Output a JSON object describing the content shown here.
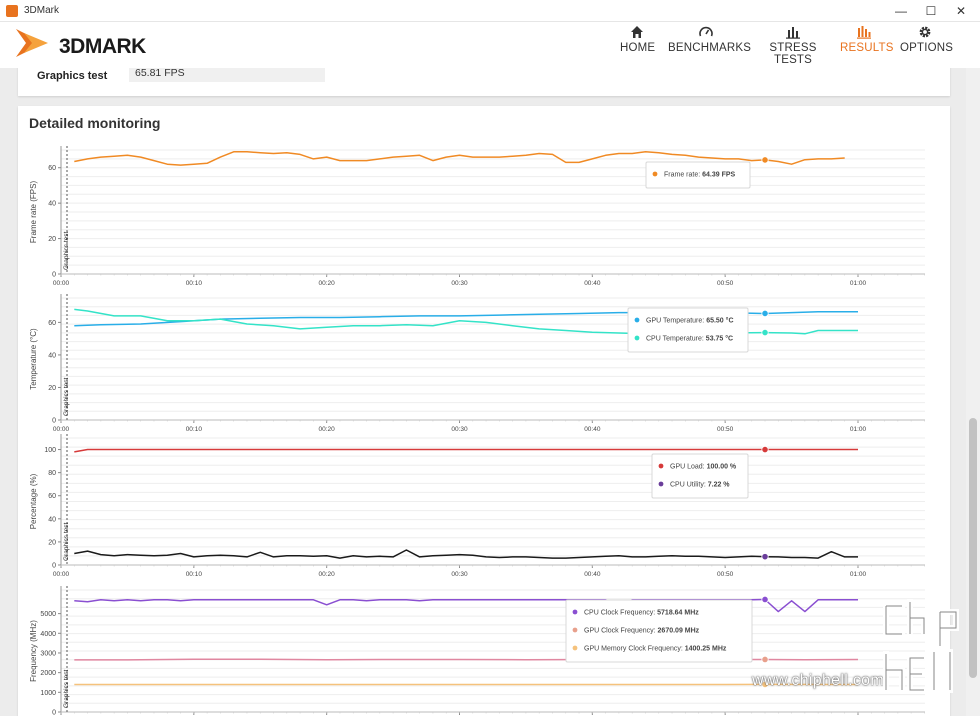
{
  "window": {
    "title": "3DMark",
    "minimize": "—",
    "maximize": "☐",
    "close": "✕"
  },
  "brand": {
    "logo_text": "3DMARK",
    "accent_color": "#e8731f"
  },
  "nav": [
    {
      "label": "HOME",
      "icon": "home-icon",
      "active": false
    },
    {
      "label": "BENCHMARKS",
      "icon": "gauge-icon",
      "active": false
    },
    {
      "label": "STRESS TESTS",
      "icon": "bars-icon",
      "active": false
    },
    {
      "label": "RESULTS",
      "icon": "results-icon",
      "active": true
    },
    {
      "label": "OPTIONS",
      "icon": "gear-icon",
      "active": false
    }
  ],
  "summary": {
    "label": "Graphics test",
    "value": "65.81 FPS"
  },
  "monitoring": {
    "title": "Detailed monitoring",
    "marker_label": "Graphics test",
    "x_ticks": [
      "00:00",
      "00:10",
      "00:20",
      "00:30",
      "00:40",
      "00:50",
      "01:00"
    ]
  },
  "chart_data": [
    {
      "type": "line",
      "ylabel": "Frame rate (FPS)",
      "ylim": [
        0,
        70
      ],
      "yticks": [
        0,
        20,
        40,
        60
      ],
      "x_range": [
        0,
        65
      ],
      "series": [
        {
          "name": "Frame rate",
          "color": "#f08a24",
          "x": [
            1,
            2,
            3,
            4,
            5,
            6,
            7,
            8,
            9,
            10,
            11,
            12,
            13,
            14,
            15,
            16,
            17,
            18,
            19,
            20,
            21,
            22,
            23,
            24,
            25,
            26,
            27,
            28,
            29,
            30,
            31,
            32,
            33,
            34,
            35,
            36,
            37,
            38,
            39,
            40,
            41,
            42,
            43,
            44,
            45,
            46,
            47,
            48,
            49,
            50,
            51,
            52,
            53,
            54,
            55,
            56,
            57,
            58,
            59
          ],
          "y": [
            63.5,
            65,
            66,
            66.5,
            67,
            66,
            64,
            62,
            61.5,
            62,
            62.5,
            66,
            69,
            69,
            68.5,
            68,
            68.5,
            67.5,
            65,
            66,
            64,
            64,
            64,
            65,
            66,
            66.5,
            67,
            64,
            66,
            67,
            66,
            66,
            66,
            66.5,
            67,
            68,
            67.5,
            63,
            63,
            65,
            67,
            68,
            68,
            69,
            68.5,
            67.5,
            67,
            66,
            65.5,
            65,
            65,
            64,
            64.39,
            63.5,
            62,
            64.5,
            65,
            65,
            65.5
          ]
        }
      ],
      "tooltip": [
        {
          "label": "Frame rate:",
          "value": "64.39 FPS",
          "color": "#f08a24"
        }
      ],
      "highlight_x": 53
    },
    {
      "type": "line",
      "ylabel": "Temperature (°C)",
      "ylim": [
        0,
        75
      ],
      "yticks": [
        0,
        20,
        40,
        60
      ],
      "x_range": [
        0,
        65
      ],
      "series": [
        {
          "name": "GPU Temperature",
          "color": "#29aee8",
          "x": [
            1,
            3,
            6,
            9,
            12,
            15,
            18,
            21,
            24,
            27,
            30,
            33,
            36,
            39,
            42,
            45,
            48,
            50,
            53,
            55,
            57,
            60
          ],
          "y": [
            58,
            58.5,
            59,
            60.5,
            62,
            62.5,
            63,
            63,
            63.5,
            64,
            64,
            64.5,
            65,
            65.5,
            66,
            66,
            66.5,
            66,
            65.5,
            66,
            66.5,
            66.5
          ]
        },
        {
          "name": "CPU Temperature",
          "color": "#34e3c8",
          "x": [
            1,
            2,
            4,
            6,
            8,
            10,
            12,
            14,
            16,
            18,
            20,
            22,
            24,
            26,
            28,
            30,
            32,
            34,
            36,
            38,
            40,
            42,
            44,
            46,
            48,
            50,
            53,
            55,
            56,
            57,
            60
          ],
          "y": [
            68,
            67,
            64,
            64,
            61,
            61,
            62,
            59,
            58,
            56,
            57,
            58,
            58,
            58.5,
            58,
            61,
            60,
            58,
            56,
            55,
            54,
            53.5,
            53,
            53,
            53.5,
            53.5,
            53.75,
            53.5,
            53,
            55,
            55
          ]
        }
      ],
      "tooltip": [
        {
          "label": "GPU Temperature:",
          "value": "65.50 °C",
          "color": "#29aee8"
        },
        {
          "label": "CPU Temperature:",
          "value": "53.75 °C",
          "color": "#34e3c8"
        }
      ],
      "highlight_x": 53
    },
    {
      "type": "line",
      "ylabel": "Percentage (%)",
      "ylim": [
        0,
        110
      ],
      "yticks": [
        0,
        20,
        40,
        60,
        80,
        100
      ],
      "x_range": [
        0,
        65
      ],
      "series": [
        {
          "name": "GPU Load",
          "color": "#d63a3a",
          "x": [
            1,
            2,
            10,
            20,
            30,
            40,
            50,
            53,
            60
          ],
          "y": [
            98,
            100,
            100,
            100,
            100,
            100,
            100,
            100,
            100
          ]
        },
        {
          "name": "CPU Utility",
          "color": "#1a1a1a",
          "x": [
            1,
            2,
            3,
            4,
            5,
            6,
            7,
            8,
            9,
            10,
            11,
            12,
            13,
            14,
            15,
            16,
            17,
            18,
            19,
            20,
            21,
            22,
            23,
            24,
            25,
            26,
            27,
            28,
            29,
            30,
            31,
            32,
            33,
            34,
            35,
            36,
            37,
            38,
            39,
            40,
            41,
            42,
            43,
            44,
            45,
            46,
            47,
            48,
            49,
            50,
            51,
            52,
            53,
            54,
            55,
            56,
            57,
            58,
            59,
            60
          ],
          "y": [
            10,
            12,
            9,
            8,
            9,
            8.5,
            8,
            8.5,
            10,
            7,
            8,
            8.5,
            8,
            7,
            11,
            7,
            8,
            8,
            7.5,
            8,
            6,
            8,
            7,
            7.5,
            7,
            13,
            7,
            8,
            8.5,
            9,
            8.5,
            7,
            6.5,
            7,
            7,
            6.5,
            6,
            6,
            6.5,
            7,
            7.5,
            8,
            7,
            7,
            7.5,
            8,
            7.5,
            7.5,
            7,
            6.5,
            7,
            7.5,
            7.22,
            7,
            6.5,
            6.5,
            6,
            11.5,
            7,
            7
          ]
        }
      ],
      "tooltip": [
        {
          "label": "GPU Load:",
          "value": "100.00 %",
          "color": "#d63a3a"
        },
        {
          "label": "CPU Utility:",
          "value": "7.22 %",
          "color": "#6a3d9a"
        }
      ],
      "highlight_x": 53
    },
    {
      "type": "line",
      "ylabel": "Frequency (MHz)",
      "ylim": [
        0,
        6200
      ],
      "yticks": [
        0,
        1000,
        2000,
        3000,
        4000,
        5000
      ],
      "x_range": [
        0,
        65
      ],
      "series": [
        {
          "name": "CPU Clock Frequency",
          "color": "#8a4fd1",
          "x": [
            1,
            2,
            3,
            4,
            5,
            6,
            7,
            8,
            9,
            10,
            11,
            12,
            13,
            14,
            15,
            16,
            17,
            18,
            19,
            20,
            21,
            22,
            23,
            24,
            25,
            26,
            27,
            28,
            29,
            30,
            31,
            32,
            33,
            34,
            35,
            36,
            37,
            38,
            39,
            40,
            41,
            42,
            43,
            44,
            45,
            46,
            47,
            48,
            49,
            50,
            51,
            52,
            53,
            54,
            55,
            56,
            57,
            58,
            59,
            60
          ],
          "y": [
            5650,
            5600,
            5700,
            5650,
            5700,
            5650,
            5700,
            5700,
            5650,
            5700,
            5700,
            5700,
            5700,
            5700,
            5700,
            5700,
            5700,
            5700,
            5700,
            5450,
            5700,
            5700,
            5650,
            5700,
            5700,
            5700,
            5650,
            5700,
            5700,
            5700,
            5700,
            5700,
            5700,
            5700,
            5700,
            5700,
            5700,
            5700,
            5700,
            5700,
            5700,
            5500,
            5700,
            5700,
            5700,
            5700,
            5700,
            5700,
            5700,
            5700,
            5700,
            5700,
            5718.64,
            5100,
            5650,
            5100,
            5700,
            5700,
            5700,
            5700
          ]
        },
        {
          "name": "GPU Clock Frequency",
          "color": "#e087a0",
          "x": [
            1,
            5,
            10,
            15,
            20,
            25,
            30,
            35,
            40,
            45,
            50,
            53,
            56,
            60
          ],
          "y": [
            2650,
            2650,
            2680,
            2680,
            2660,
            2670,
            2670,
            2660,
            2670,
            2670,
            2670,
            2670.09,
            2660,
            2670
          ]
        },
        {
          "name": "GPU Memory Clock Frequency",
          "color": "#f5c27c",
          "x": [
            1,
            10,
            20,
            30,
            40,
            50,
            53,
            60
          ],
          "y": [
            1400,
            1400,
            1400,
            1400,
            1400,
            1400,
            1400.25,
            1400
          ]
        }
      ],
      "tooltip": [
        {
          "label": "CPU Clock Frequency:",
          "value": "5718.64 MHz",
          "color": "#8a4fd1"
        },
        {
          "label": "GPU Clock Frequency:",
          "value": "2670.09 MHz",
          "color": "#e8a08c"
        },
        {
          "label": "GPU Memory Clock Frequency:",
          "value": "1400.25 MHz",
          "color": "#f5c27c"
        }
      ],
      "highlight_x": 53
    }
  ],
  "watermark": {
    "url": "www.chiphell.com",
    "brand": "chip hell"
  }
}
